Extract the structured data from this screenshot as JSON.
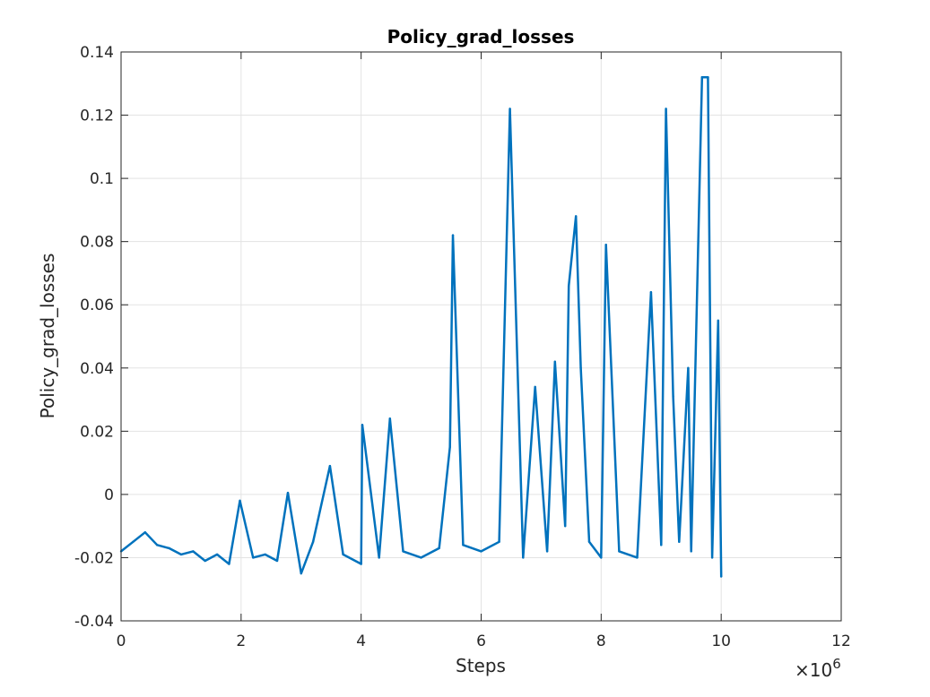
{
  "chart_data": {
    "type": "line",
    "title": "Policy_grad_losses",
    "xlabel": "Steps",
    "ylabel": "Policy_grad_losses",
    "x_exponent_label": "×10^6",
    "x_exponent_base": "×10",
    "x_exponent_power": "6",
    "xlim": [
      0,
      12
    ],
    "ylim": [
      -0.04,
      0.14
    ],
    "x_scale_factor": 1000000,
    "x_ticks": [
      0,
      2,
      4,
      6,
      8,
      10,
      12
    ],
    "x_tick_labels": [
      "0",
      "2",
      "4",
      "6",
      "8",
      "10",
      "12"
    ],
    "y_ticks": [
      -0.04,
      -0.02,
      0,
      0.02,
      0.04,
      0.06,
      0.08,
      0.1,
      0.12,
      0.14
    ],
    "y_tick_labels": [
      "-0.04",
      "-0.02",
      "0",
      "0.02",
      "0.04",
      "0.06",
      "0.08",
      "0.1",
      "0.12",
      "0.14"
    ],
    "grid": true,
    "line_color": "#0072BD",
    "series": [
      {
        "x": [
          0,
          0.2,
          0.4,
          0.6,
          0.8,
          1.0,
          1.2,
          1.4,
          1.6,
          1.8,
          1.98,
          2.2,
          2.4,
          2.6,
          2.78,
          3.0,
          3.2,
          3.48,
          3.7,
          4.0,
          4.02,
          4.3,
          4.48,
          4.7,
          5.0,
          5.3,
          5.48,
          5.53,
          5.7,
          6.0,
          6.3,
          6.48,
          6.7,
          6.9,
          7.1,
          7.23,
          7.4,
          7.46,
          7.58,
          7.66,
          7.8,
          8.0,
          8.08,
          8.3,
          8.6,
          8.83,
          9.0,
          9.08,
          9.2,
          9.3,
          9.45,
          9.5,
          9.68,
          9.78,
          9.85,
          9.95,
          10.0
        ],
        "y": [
          -0.018,
          -0.015,
          -0.012,
          -0.016,
          -0.017,
          -0.019,
          -0.018,
          -0.021,
          -0.019,
          -0.022,
          -0.002,
          -0.02,
          -0.019,
          -0.021,
          0.0005,
          -0.025,
          -0.015,
          0.009,
          -0.019,
          -0.022,
          0.022,
          -0.02,
          0.024,
          -0.018,
          -0.02,
          -0.017,
          0.015,
          0.082,
          -0.016,
          -0.018,
          -0.015,
          0.122,
          -0.02,
          0.034,
          -0.018,
          0.042,
          -0.01,
          0.066,
          0.088,
          0.04,
          -0.015,
          -0.02,
          0.079,
          -0.018,
          -0.02,
          0.064,
          -0.016,
          0.122,
          0.031,
          -0.015,
          0.04,
          -0.018,
          0.132,
          0.132,
          -0.02,
          0.055,
          -0.026
        ]
      }
    ]
  }
}
